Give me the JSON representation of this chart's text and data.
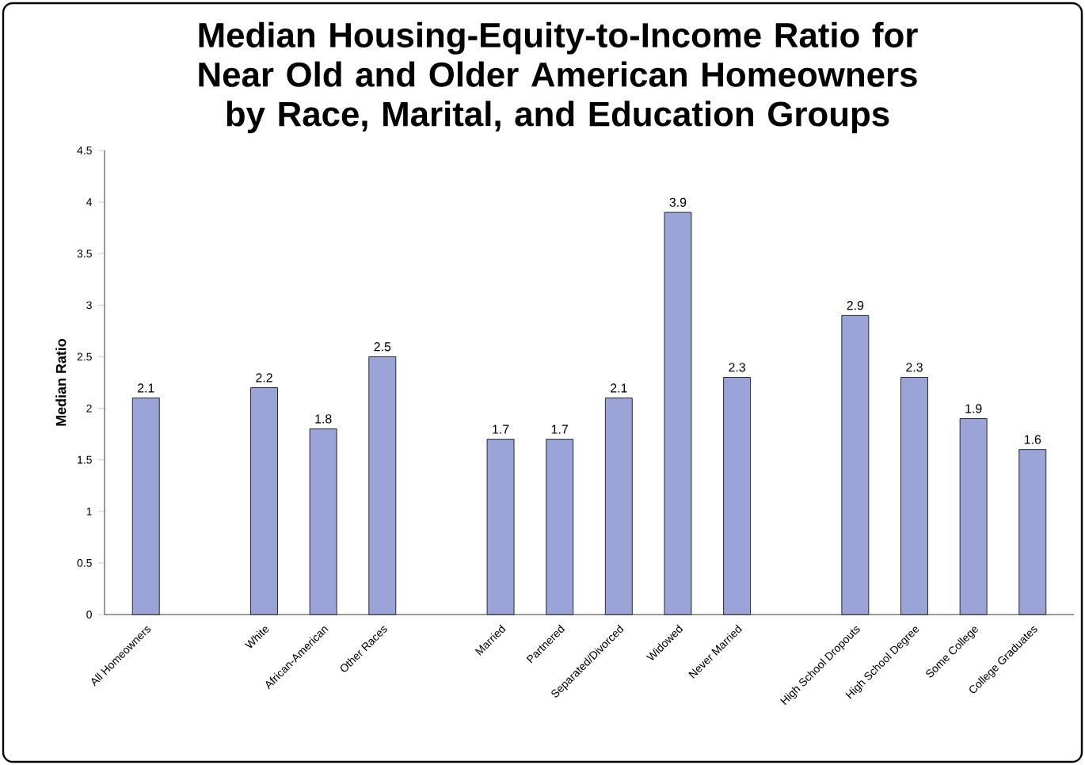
{
  "chart_data": {
    "type": "bar",
    "title": "Median Housing-Equity-to-Income Ratio for Near Old and Older American Homeowners by Race, Marital, and Education Groups",
    "ylabel": "Median Ratio",
    "categories": [
      "All Homeowners",
      null,
      "White",
      "African-American",
      "Other Races",
      null,
      "Married",
      "Partnered",
      "Separated/Divorced",
      "Widowed",
      "Never Married",
      null,
      "High School Dropouts",
      "High School Degree",
      "Some College",
      "College Graduates"
    ],
    "values": [
      2.1,
      null,
      2.2,
      1.8,
      2.5,
      null,
      1.7,
      1.7,
      2.1,
      3.9,
      2.3,
      null,
      2.9,
      2.3,
      1.9,
      1.6
    ],
    "color": "#9ba4d6",
    "ylim": [
      0,
      4.5
    ],
    "yticks": [
      0,
      0.5,
      1,
      1.5,
      2,
      2.5,
      3,
      3.5,
      4,
      4.5
    ],
    "data_labels": true
  }
}
